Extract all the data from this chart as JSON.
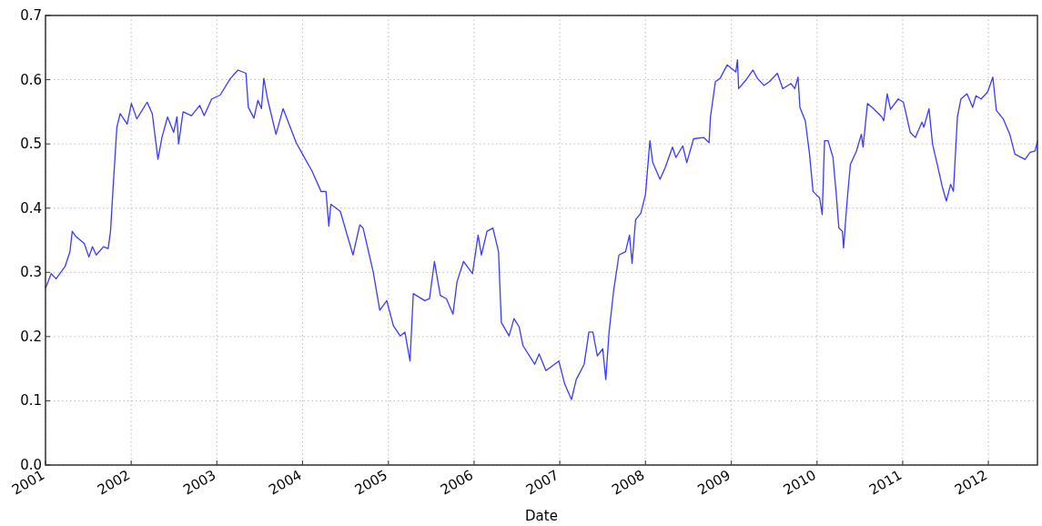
{
  "chart_data": {
    "type": "line",
    "xlabel": "Date",
    "grid": true,
    "line_style": "solid",
    "xlim": [
      "2001-01-01",
      "2012-07-28"
    ],
    "xticks": [
      "2001",
      "2002",
      "2003",
      "2004",
      "2005",
      "2006",
      "2007",
      "2008",
      "2009",
      "2010",
      "2011",
      "2012"
    ],
    "ylim": [
      0,
      0.7
    ],
    "yticks": [
      {
        "value": 0,
        "label": "0.0"
      },
      0.1,
      0.2,
      0.3,
      0.4,
      0.5,
      0.6,
      0.7
    ],
    "series": [
      {
        "color": "#3a3aff",
        "x": [
          "2001-01-01",
          "2001-01-25",
          "2001-02-15",
          "2001-03-25",
          "2001-04-15",
          "2001-04-25",
          "2001-05-10",
          "2001-06-15",
          "2001-07-05",
          "2001-07-20",
          "2001-08-05",
          "2001-09-05",
          "2001-09-25",
          "2001-10-05",
          "2001-10-15",
          "2001-11-01",
          "2001-11-15",
          "2001-12-15",
          "2002-01-02",
          "2002-01-25",
          "2002-03-10",
          "2002-04-01",
          "2002-04-25",
          "2002-05-12",
          "2002-06-05",
          "2002-07-01",
          "2002-07-15",
          "2002-07-22",
          "2002-08-10",
          "2002-09-15",
          "2002-10-20",
          "2002-11-08",
          "2002-12-10",
          "2003-01-15",
          "2003-02-28",
          "2003-04-01",
          "2003-05-05",
          "2003-05-15",
          "2003-06-08",
          "2003-06-25",
          "2003-07-10",
          "2003-07-20",
          "2003-08-05",
          "2003-09-10",
          "2003-10-10",
          "2003-12-05",
          "2004-01-01",
          "2004-02-10",
          "2004-03-20",
          "2004-04-10",
          "2004-04-22",
          "2004-05-01",
          "2004-06-10",
          "2004-08-03",
          "2004-09-01",
          "2004-09-15",
          "2004-10-28",
          "2004-11-25",
          "2004-12-25",
          "2005-01-22",
          "2005-02-20",
          "2005-03-12",
          "2005-04-03",
          "2005-04-17",
          "2005-06-05",
          "2005-06-25",
          "2005-07-16",
          "2005-08-10",
          "2005-09-05",
          "2005-10-03",
          "2005-10-20",
          "2005-11-17",
          "2005-12-25",
          "2006-01-18",
          "2006-02-01",
          "2006-02-25",
          "2006-03-22",
          "2006-04-15",
          "2006-04-27",
          "2006-05-30",
          "2006-06-20",
          "2006-07-12",
          "2006-07-28",
          "2006-09-16",
          "2006-10-05",
          "2006-11-03",
          "2006-12-28",
          "2007-01-22",
          "2007-02-20",
          "2007-03-12",
          "2007-04-15",
          "2007-05-05",
          "2007-05-22",
          "2007-06-10",
          "2007-07-03",
          "2007-07-16",
          "2007-07-30",
          "2007-08-18",
          "2007-09-10",
          "2007-10-08",
          "2007-10-25",
          "2007-11-05",
          "2007-11-20",
          "2007-12-12",
          "2008-01-01",
          "2008-01-20",
          "2008-02-01",
          "2008-03-03",
          "2008-03-25",
          "2008-04-25",
          "2008-05-10",
          "2008-06-08",
          "2008-06-25",
          "2008-07-24",
          "2008-09-05",
          "2008-09-28",
          "2008-10-04",
          "2008-10-25",
          "2008-11-14",
          "2008-12-14",
          "2009-01-20",
          "2009-01-27",
          "2009-02-01",
          "2009-03-03",
          "2009-04-03",
          "2009-04-22",
          "2009-05-20",
          "2009-06-12",
          "2009-07-16",
          "2009-08-08",
          "2009-09-12",
          "2009-09-28",
          "2009-10-12",
          "2009-10-20",
          "2009-11-12",
          "2009-11-30",
          "2009-12-15",
          "2010-01-12",
          "2010-01-23",
          "2010-02-02",
          "2010-02-17",
          "2010-03-10",
          "2010-03-24",
          "2010-04-04",
          "2010-04-19",
          "2010-04-24",
          "2010-05-09",
          "2010-05-23",
          "2010-06-18",
          "2010-07-09",
          "2010-07-16",
          "2010-08-04",
          "2010-08-29",
          "2010-10-04",
          "2010-10-12",
          "2010-10-27",
          "2010-11-10",
          "2010-12-13",
          "2011-01-04",
          "2011-02-02",
          "2011-02-24",
          "2011-03-24",
          "2011-04-01",
          "2011-04-23",
          "2011-05-08",
          "2011-05-27",
          "2011-06-18",
          "2011-07-06",
          "2011-07-24",
          "2011-08-05",
          "2011-08-22",
          "2011-09-06",
          "2011-10-02",
          "2011-10-26",
          "2011-11-09",
          "2011-12-01",
          "2011-12-29",
          "2012-01-20",
          "2012-02-04",
          "2012-03-04",
          "2012-04-01",
          "2012-04-23",
          "2012-06-05",
          "2012-06-27",
          "2012-07-18",
          "2012-07-28"
        ],
        "values": [
          0.275,
          0.298,
          0.29,
          0.309,
          0.332,
          0.364,
          0.356,
          0.345,
          0.324,
          0.34,
          0.327,
          0.34,
          0.337,
          0.364,
          0.426,
          0.526,
          0.547,
          0.531,
          0.563,
          0.539,
          0.565,
          0.547,
          0.476,
          0.51,
          0.542,
          0.518,
          0.542,
          0.5,
          0.55,
          0.544,
          0.56,
          0.544,
          0.57,
          0.576,
          0.602,
          0.615,
          0.61,
          0.557,
          0.54,
          0.568,
          0.555,
          0.602,
          0.57,
          0.515,
          0.555,
          0.502,
          0.484,
          0.458,
          0.426,
          0.426,
          0.372,
          0.406,
          0.395,
          0.327,
          0.374,
          0.369,
          0.301,
          0.241,
          0.256,
          0.217,
          0.201,
          0.207,
          0.162,
          0.267,
          0.256,
          0.259,
          0.317,
          0.264,
          0.259,
          0.235,
          0.285,
          0.317,
          0.298,
          0.358,
          0.327,
          0.364,
          0.369,
          0.332,
          0.222,
          0.201,
          0.228,
          0.215,
          0.186,
          0.157,
          0.173,
          0.147,
          0.162,
          0.126,
          0.102,
          0.133,
          0.157,
          0.207,
          0.207,
          0.17,
          0.181,
          0.133,
          0.207,
          0.27,
          0.327,
          0.332,
          0.358,
          0.314,
          0.382,
          0.392,
          0.421,
          0.505,
          0.471,
          0.445,
          0.463,
          0.495,
          0.479,
          0.497,
          0.471,
          0.508,
          0.51,
          0.502,
          0.542,
          0.597,
          0.602,
          0.623,
          0.612,
          0.631,
          0.586,
          0.599,
          0.615,
          0.602,
          0.591,
          0.597,
          0.61,
          0.586,
          0.594,
          0.586,
          0.604,
          0.557,
          0.536,
          0.484,
          0.426,
          0.416,
          0.39,
          0.505,
          0.505,
          0.479,
          0.421,
          0.369,
          0.364,
          0.338,
          0.411,
          0.468,
          0.489,
          0.515,
          0.495,
          0.563,
          0.555,
          0.542,
          0.536,
          0.578,
          0.554,
          0.57,
          0.565,
          0.518,
          0.51,
          0.534,
          0.526,
          0.555,
          0.5,
          0.47,
          0.434,
          0.411,
          0.437,
          0.426,
          0.542,
          0.57,
          0.578,
          0.557,
          0.575,
          0.57,
          0.581,
          0.604,
          0.552,
          0.539,
          0.515,
          0.484,
          0.476,
          0.487,
          0.489,
          0.505
        ]
      }
    ]
  }
}
